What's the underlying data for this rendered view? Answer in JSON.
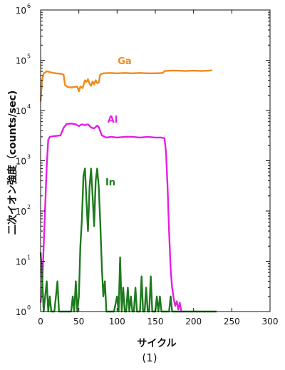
{
  "chart_data": {
    "type": "line",
    "title": "",
    "xlabel": "サイクル",
    "ylabel": "二次イオン強度（counts/sec)",
    "caption": "(1)",
    "xlim": [
      0,
      300
    ],
    "ylim": [
      1,
      1000000
    ],
    "y_scale": "log",
    "x_ticks": [
      0,
      50,
      100,
      150,
      200,
      250,
      300
    ],
    "x_tick_labels": [
      "0",
      "50",
      "100",
      "150",
      "200",
      "250",
      "300"
    ],
    "y_ticks": [
      1,
      10,
      100,
      1000,
      10000,
      100000,
      1000000
    ],
    "y_tick_labels": [
      {
        "base": "10",
        "exp": "0"
      },
      {
        "base": "10",
        "exp": "1"
      },
      {
        "base": "10",
        "exp": "2"
      },
      {
        "base": "10",
        "exp": "3"
      },
      {
        "base": "10",
        "exp": "4"
      },
      {
        "base": "10",
        "exp": "5"
      },
      {
        "base": "10",
        "exp": "6"
      }
    ],
    "grid": false,
    "series": [
      {
        "name": "Ga",
        "color": "#f28a1c",
        "points": [
          [
            0,
            15000
          ],
          [
            2,
            40000
          ],
          [
            4,
            55000
          ],
          [
            8,
            60000
          ],
          [
            14,
            57000
          ],
          [
            20,
            55000
          ],
          [
            26,
            54000
          ],
          [
            30,
            52000
          ],
          [
            32,
            32000
          ],
          [
            36,
            29000
          ],
          [
            42,
            29000
          ],
          [
            48,
            30000
          ],
          [
            50,
            24000
          ],
          [
            52,
            30000
          ],
          [
            55,
            28000
          ],
          [
            58,
            40000
          ],
          [
            60,
            37000
          ],
          [
            62,
            42000
          ],
          [
            64,
            34000
          ],
          [
            66,
            31000
          ],
          [
            68,
            38000
          ],
          [
            70,
            33000
          ],
          [
            72,
            40000
          ],
          [
            74,
            35000
          ],
          [
            76,
            36000
          ],
          [
            78,
            52000
          ],
          [
            82,
            55000
          ],
          [
            90,
            56000
          ],
          [
            100,
            55000
          ],
          [
            110,
            56000
          ],
          [
            120,
            55000
          ],
          [
            130,
            56000
          ],
          [
            140,
            55000
          ],
          [
            150,
            55000
          ],
          [
            160,
            56000
          ],
          [
            162,
            61000
          ],
          [
            170,
            62000
          ],
          [
            180,
            62000
          ],
          [
            190,
            61000
          ],
          [
            200,
            62000
          ],
          [
            210,
            61000
          ],
          [
            220,
            62000
          ],
          [
            224,
            63000
          ]
        ]
      },
      {
        "name": "Al",
        "color": "#e61ee6",
        "points": [
          [
            0,
            1.5
          ],
          [
            2,
            3
          ],
          [
            4,
            20
          ],
          [
            6,
            120
          ],
          [
            8,
            800
          ],
          [
            10,
            2600
          ],
          [
            12,
            3000
          ],
          [
            18,
            3100
          ],
          [
            26,
            3200
          ],
          [
            30,
            4500
          ],
          [
            34,
            5400
          ],
          [
            40,
            5500
          ],
          [
            46,
            5300
          ],
          [
            50,
            4900
          ],
          [
            54,
            5300
          ],
          [
            58,
            5100
          ],
          [
            62,
            5300
          ],
          [
            66,
            4600
          ],
          [
            70,
            4400
          ],
          [
            74,
            5000
          ],
          [
            76,
            4700
          ],
          [
            80,
            3200
          ],
          [
            86,
            2900
          ],
          [
            92,
            3000
          ],
          [
            100,
            2900
          ],
          [
            110,
            3000
          ],
          [
            120,
            3000
          ],
          [
            130,
            2900
          ],
          [
            140,
            3000
          ],
          [
            150,
            2900
          ],
          [
            158,
            2900
          ],
          [
            162,
            2800
          ],
          [
            164,
            1500
          ],
          [
            166,
            300
          ],
          [
            168,
            40
          ],
          [
            170,
            7
          ],
          [
            172,
            3
          ],
          [
            174,
            1.8
          ],
          [
            176,
            1.3
          ],
          [
            178,
            1.6
          ],
          [
            180,
            1.1
          ],
          [
            182,
            1.5
          ],
          [
            184,
            1.0
          ],
          [
            186,
            1.0
          ]
        ]
      },
      {
        "name": "In",
        "color": "#1e7a1e",
        "points": [
          [
            0,
            15
          ],
          [
            2,
            5
          ],
          [
            4,
            1
          ],
          [
            6,
            2
          ],
          [
            8,
            4
          ],
          [
            10,
            1
          ],
          [
            12,
            2
          ],
          [
            14,
            1
          ],
          [
            16,
            1
          ],
          [
            18,
            1
          ],
          [
            20,
            2
          ],
          [
            22,
            4
          ],
          [
            24,
            1
          ],
          [
            28,
            1
          ],
          [
            32,
            1
          ],
          [
            36,
            1
          ],
          [
            40,
            1
          ],
          [
            42,
            2
          ],
          [
            44,
            1
          ],
          [
            46,
            4
          ],
          [
            48,
            1
          ],
          [
            50,
            2
          ],
          [
            52,
            20
          ],
          [
            54,
            70
          ],
          [
            56,
            500
          ],
          [
            58,
            700
          ],
          [
            60,
            150
          ],
          [
            62,
            40
          ],
          [
            64,
            300
          ],
          [
            66,
            700
          ],
          [
            68,
            200
          ],
          [
            70,
            50
          ],
          [
            72,
            400
          ],
          [
            74,
            700
          ],
          [
            76,
            300
          ],
          [
            78,
            60
          ],
          [
            80,
            8
          ],
          [
            82,
            2
          ],
          [
            84,
            4
          ],
          [
            86,
            1
          ],
          [
            88,
            1
          ],
          [
            92,
            1
          ],
          [
            96,
            1
          ],
          [
            100,
            2
          ],
          [
            102,
            1
          ],
          [
            104,
            12
          ],
          [
            106,
            1
          ],
          [
            108,
            3
          ],
          [
            110,
            1
          ],
          [
            112,
            1
          ],
          [
            114,
            3
          ],
          [
            116,
            1
          ],
          [
            118,
            2
          ],
          [
            120,
            1
          ],
          [
            122,
            1
          ],
          [
            124,
            3
          ],
          [
            126,
            1
          ],
          [
            130,
            1
          ],
          [
            132,
            5
          ],
          [
            134,
            1
          ],
          [
            136,
            1
          ],
          [
            138,
            3
          ],
          [
            140,
            1
          ],
          [
            142,
            1
          ],
          [
            144,
            5
          ],
          [
            146,
            1
          ],
          [
            148,
            1
          ],
          [
            150,
            1
          ],
          [
            152,
            2
          ],
          [
            154,
            1
          ],
          [
            156,
            2
          ],
          [
            158,
            1
          ],
          [
            160,
            1
          ],
          [
            162,
            1
          ],
          [
            164,
            1
          ],
          [
            168,
            1
          ],
          [
            170,
            2
          ],
          [
            172,
            1
          ],
          [
            176,
            1
          ],
          [
            180,
            1
          ],
          [
            185,
            1
          ],
          [
            190,
            1
          ],
          [
            195,
            1
          ],
          [
            200,
            1
          ],
          [
            205,
            1
          ],
          [
            210,
            1
          ],
          [
            220,
            1
          ],
          [
            230,
            1
          ]
        ]
      }
    ]
  }
}
